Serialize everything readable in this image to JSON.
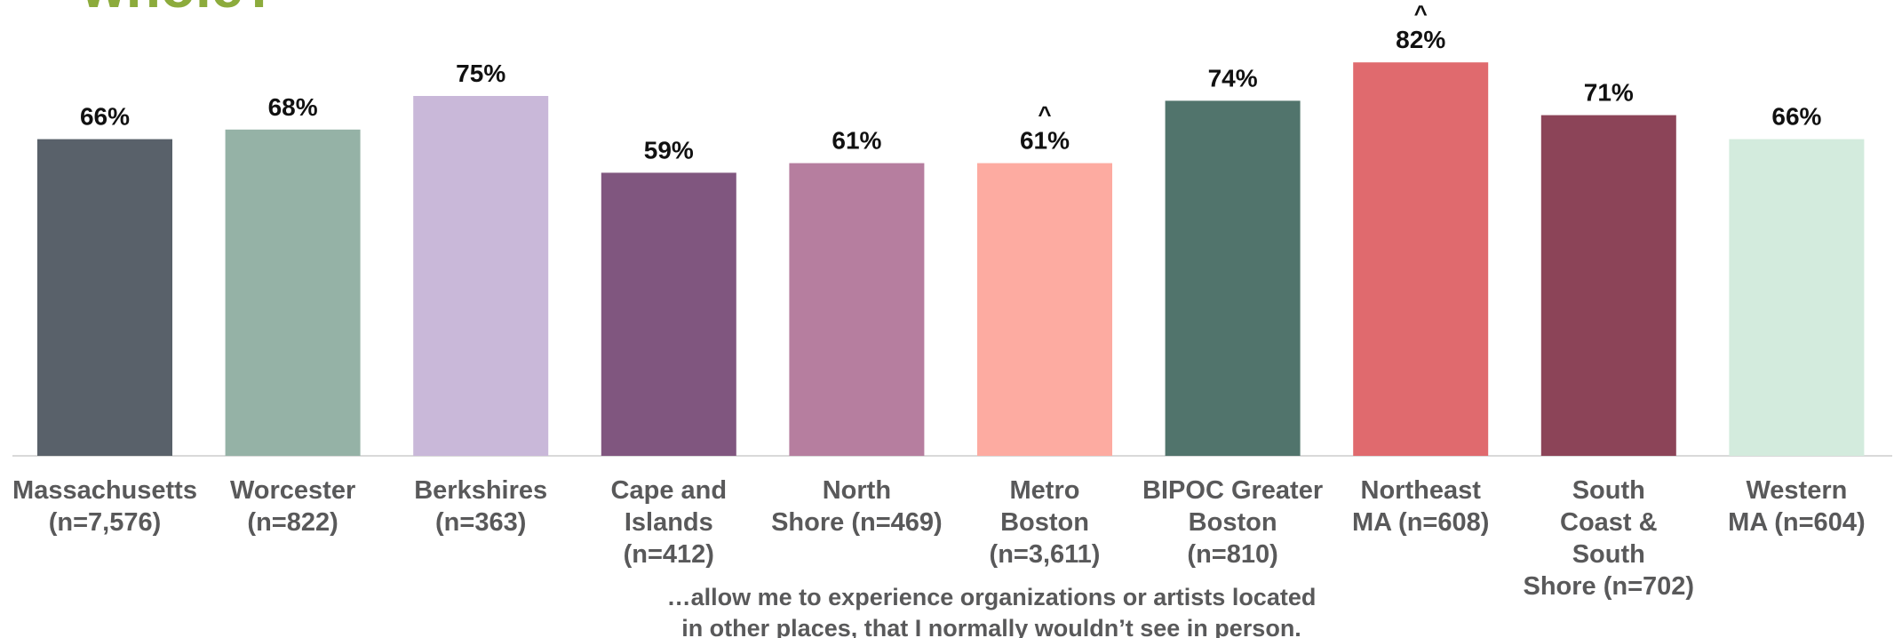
{
  "title": "whole?",
  "chart_data": {
    "type": "bar",
    "categories": [
      [
        "Massachusetts",
        "(n=7,576)"
      ],
      [
        "Worcester",
        "(n=822)"
      ],
      [
        "Berkshires",
        "(n=363)"
      ],
      [
        "Cape and",
        "Islands",
        "(n=412)"
      ],
      [
        "North",
        "Shore (n=469)"
      ],
      [
        "Metro",
        "Boston",
        "(n=3,611)"
      ],
      [
        "BIPOC Greater",
        "Boston",
        "(n=810)"
      ],
      [
        "Northeast",
        "MA (n=608)"
      ],
      [
        "South",
        "Coast &",
        "South",
        "Shore (n=702)"
      ],
      [
        "Western",
        "MA (n=604)"
      ]
    ],
    "values": [
      66,
      68,
      75,
      59,
      61,
      61,
      74,
      82,
      71,
      66
    ],
    "value_labels": [
      "66%",
      "68%",
      "75%",
      "59%",
      "61%",
      "61%",
      "74%",
      "82%",
      "71%",
      "66%"
    ],
    "markers": [
      "",
      "",
      "",
      "",
      "",
      "^",
      "",
      "^",
      "",
      ""
    ],
    "colors": [
      "#59616a",
      "#95b2a6",
      "#c9b8d9",
      "#80567f",
      "#b67e9f",
      "#fdaba1",
      "#51746c",
      "#e06a6e",
      "#8c4458",
      "#d3ebdd"
    ],
    "ylim": [
      0,
      100
    ],
    "caption": [
      "…allow me to experience organizations or artists located",
      "in other places, that I normally wouldn’t see in person."
    ],
    "grid": false,
    "legend": "none"
  }
}
